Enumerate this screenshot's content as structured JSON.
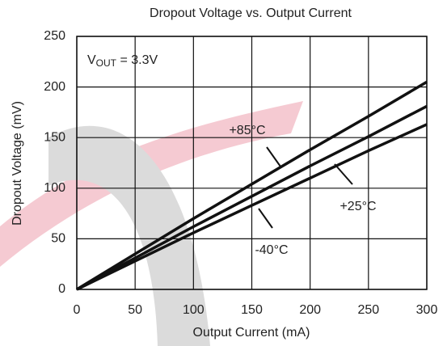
{
  "chart_data": {
    "type": "line",
    "title": "Dropout Voltage vs. Output Current",
    "x_label": "Output Current (mA)",
    "y_label": "Dropout Voltage (mV)",
    "annotation": {
      "symbol": "V",
      "subscript": "OUT",
      "text": " = 3.3V"
    },
    "x": [
      0,
      50,
      100,
      150,
      200,
      250,
      300
    ],
    "series": [
      {
        "name": "+85°C",
        "color": "#111111",
        "values": [
          0,
          35,
          70,
          104,
          138,
          171,
          205
        ]
      },
      {
        "name": "+25°C",
        "color": "#111111",
        "values": [
          0,
          31,
          62,
          92,
          122,
          151,
          181
        ]
      },
      {
        "name": "-40°C",
        "color": "#111111",
        "values": [
          0,
          28,
          56,
          83,
          110,
          137,
          163
        ]
      }
    ],
    "xlim": [
      0,
      300
    ],
    "xticks": [
      0,
      50,
      100,
      150,
      200,
      250,
      300
    ],
    "ylim": [
      0,
      250
    ],
    "yticks": [
      0,
      50,
      100,
      150,
      200,
      250
    ],
    "grid": true
  }
}
